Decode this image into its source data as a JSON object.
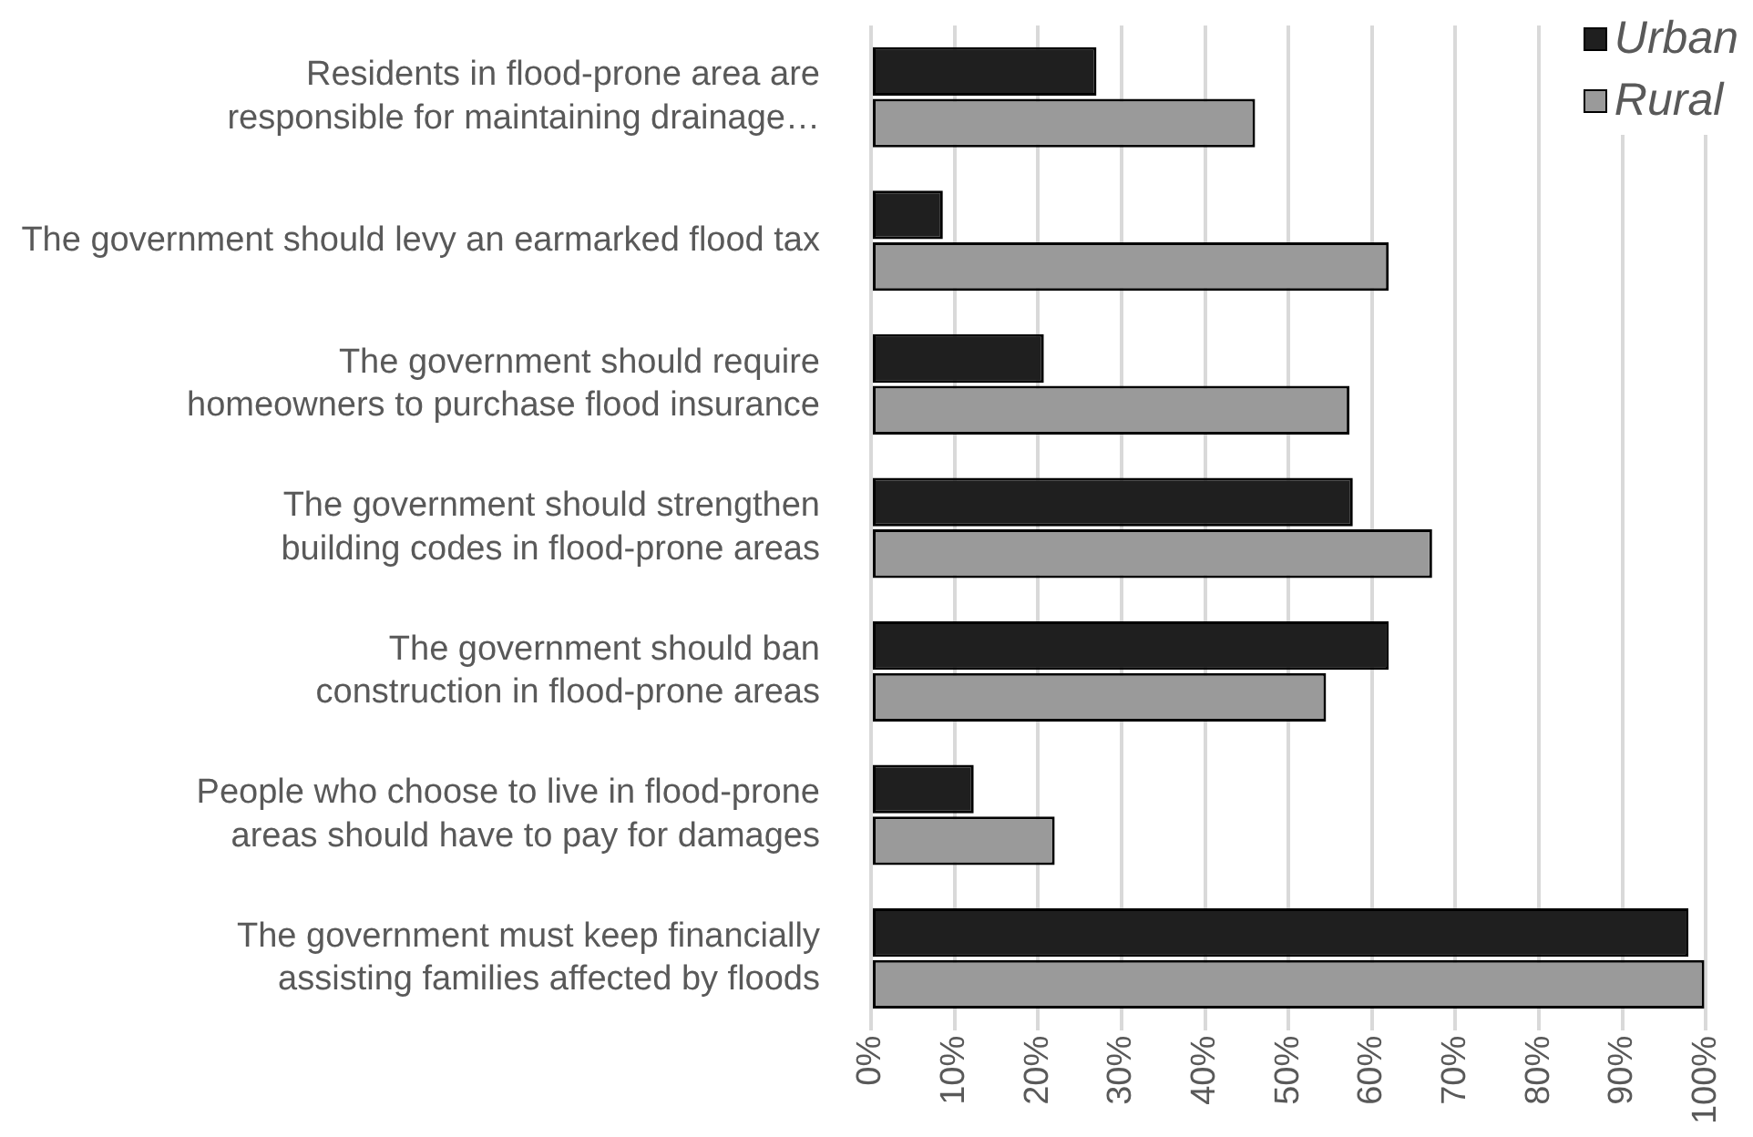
{
  "chart_data": {
    "type": "bar",
    "orientation": "horizontal",
    "categories": [
      "Residents in flood-prone area are responsible for maintaining drainage…",
      "The government should levy an earmarked flood tax",
      "The government should require homeowners to purchase flood insurance",
      "The government should strengthen building codes in flood-prone areas",
      "The government should ban construction in flood-prone areas",
      "People who choose to live in flood-prone areas should have to pay for damages",
      "The government must keep financially assisting families affected by floods"
    ],
    "series": [
      {
        "name": "Urban",
        "color": "#1f1f1f",
        "values": [
          27,
          8.6,
          20.7,
          57.7,
          62,
          12.3,
          97.9
        ]
      },
      {
        "name": "Rural",
        "color": "#9a9a9a",
        "values": [
          46,
          62,
          57.3,
          67.2,
          54.5,
          22,
          99.8
        ]
      }
    ],
    "xlim": [
      0,
      100
    ],
    "xticks": [
      {
        "value": 0,
        "label": "0%"
      },
      {
        "value": 10,
        "label": "10%"
      },
      {
        "value": 20,
        "label": "20%"
      },
      {
        "value": 30,
        "label": "30%"
      },
      {
        "value": 40,
        "label": "40%"
      },
      {
        "value": 50,
        "label": "50%"
      },
      {
        "value": 60,
        "label": "60%"
      },
      {
        "value": 70,
        "label": "70%"
      },
      {
        "value": 80,
        "label": "80%"
      },
      {
        "value": 90,
        "label": "90%"
      },
      {
        "value": 100,
        "label": "100%"
      }
    ],
    "grid": "x",
    "legend": "top right"
  }
}
